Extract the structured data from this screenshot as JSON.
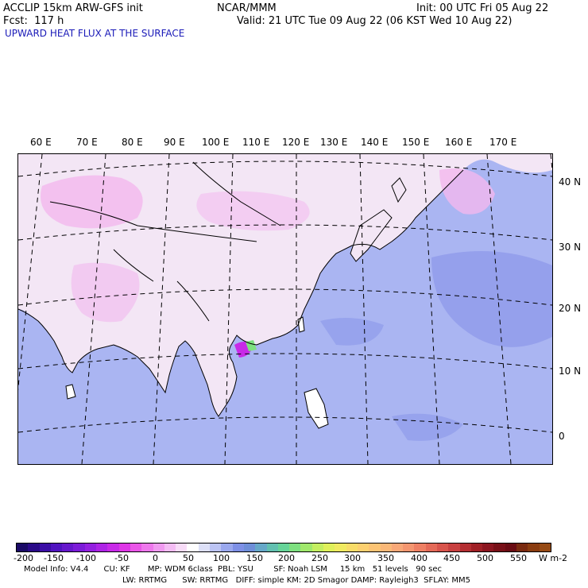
{
  "header": {
    "model": "ACCLIP 15km ARW-GFS init",
    "org": "NCAR/MMM",
    "init": "Init: 00 UTC Fri 05 Aug 22",
    "fcst": "Fcst:  117 h",
    "valid": "Valid: 21 UTC Tue 09 Aug 22 (06 KST Wed 10 Aug 22)",
    "field": "UPWARD HEAT FLUX AT THE SURFACE"
  },
  "map": {
    "lon_labels": [
      "60 E",
      "70 E",
      "80 E",
      "90 E",
      "100 E",
      "110 E",
      "120 E",
      "130 E",
      "140 E",
      "150 E",
      "160 E",
      "170 E"
    ],
    "lat_labels": [
      "40 N",
      "30 N",
      "20 N",
      "10 N",
      "0"
    ],
    "colors": {
      "ocean": "#aab5f2",
      "ocean_dark": "#8b97ea",
      "land_light": "#f3e6f5",
      "land_pink": "#f2b8ee",
      "land_white": "#ffffff"
    }
  },
  "colorbar": {
    "colors": [
      "#1a0a66",
      "#2a0a88",
      "#3c0ea6",
      "#5014c0",
      "#6618cc",
      "#7c1cd8",
      "#9420e0",
      "#ae24e6",
      "#c82ae8",
      "#de36e6",
      "#ea56e8",
      "#ee78ec",
      "#f09af0",
      "#f4bcf4",
      "#f8dcf8",
      "#ffffff",
      "#dde0f8",
      "#bcc4f4",
      "#9aa8ee",
      "#7e90e6",
      "#6e8ed8",
      "#66a8c8",
      "#62c0b0",
      "#66d498",
      "#7ee080",
      "#a0e86c",
      "#c4ee60",
      "#dff05a",
      "#f0ea60",
      "#f8dc68",
      "#fcd070",
      "#fcc474",
      "#fab878",
      "#f8a878",
      "#f49670",
      "#ee8064",
      "#e46a58",
      "#d8544c",
      "#c84040",
      "#b42e32",
      "#a02026",
      "#8c1620",
      "#781018",
      "#6a0c14",
      "#7a2a10",
      "#8a3c10",
      "#964a14"
    ],
    "ticks": [
      "-200",
      "-150",
      "-100",
      "-50",
      "0",
      "50",
      "100",
      "150",
      "200",
      "250",
      "300",
      "350",
      "400",
      "450",
      "500",
      "550"
    ],
    "unit": "W m-2"
  },
  "model_info": {
    "line1": "Model Info: V4.4      CU: KF       MP: WDM 6class  PBL: YSU        SF: Noah LSM     15 km   51 levels   90 sec",
    "line2": "LW: RRTMG      SW: RRTMG   DIFF: simple KM: 2D Smagor DAMP: Rayleigh3  SFLAY: MM5"
  }
}
